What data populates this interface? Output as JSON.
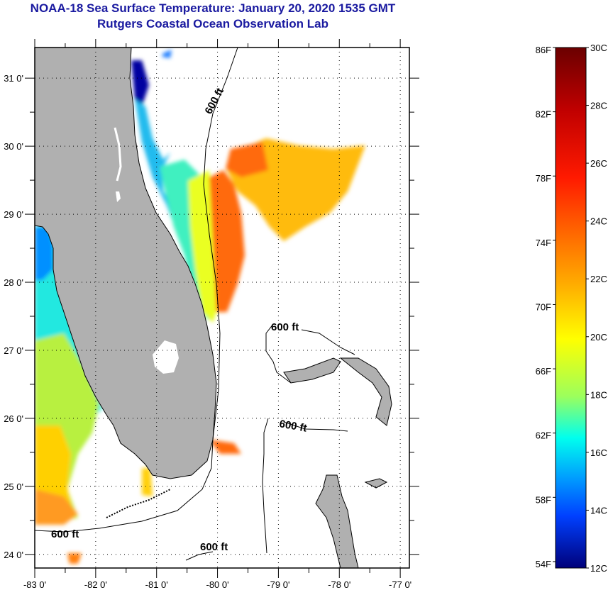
{
  "header": {
    "title": "NOAA-18 Sea Surface Temperature:  January 20, 2020 1535 GMT",
    "subtitle": "Rutgers Coastal Ocean Observation Lab"
  },
  "map": {
    "region": "Florida & Bahamas",
    "longitude_ticks": [
      "-83 0'",
      "-82 0'",
      "-81 0'",
      "-80 0'",
      "-79 0'",
      "-78 0'",
      "-77 0'"
    ],
    "longitude_values": [
      -83,
      -82,
      -81,
      -80,
      -79,
      -78,
      -77
    ],
    "latitude_ticks": [
      "31 0'",
      "30 0'",
      "29 0'",
      "28 0'",
      "27 0'",
      "26 0'",
      "25 0'",
      "24 0'"
    ],
    "latitude_values": [
      31,
      30,
      29,
      28,
      27,
      26,
      25,
      24
    ],
    "lon_range": [
      -83,
      -76.85
    ],
    "lat_range": [
      23.8,
      31.45
    ],
    "contour_labels": [
      "600 ft",
      "600 ft",
      "600 ft",
      "600 ft"
    ],
    "colors": {
      "land": "#b0b0b0",
      "no_data": "#ffffff",
      "grid": "#000000"
    }
  },
  "colorbar": {
    "fahrenheit_ticks": [
      "86F",
      "82F",
      "78F",
      "74F",
      "70F",
      "66F",
      "62F",
      "58F",
      "54F"
    ],
    "fahrenheit_values": [
      86,
      82,
      78,
      74,
      70,
      66,
      62,
      58,
      54
    ],
    "celsius_ticks": [
      "30C",
      "28C",
      "26C",
      "24C",
      "22C",
      "20C",
      "18C",
      "16C",
      "14C",
      "12C"
    ],
    "celsius_values": [
      30,
      28,
      26,
      24,
      22,
      20,
      18,
      16,
      14,
      12
    ],
    "range_c": [
      12,
      30
    ],
    "stops": [
      "#6b0000",
      "#b00000",
      "#ff1a00",
      "#ff6a00",
      "#ffb000",
      "#ffff00",
      "#9cff5c",
      "#00ffff",
      "#00a0ff",
      "#0040ff",
      "#0000d0",
      "#000080"
    ]
  }
}
